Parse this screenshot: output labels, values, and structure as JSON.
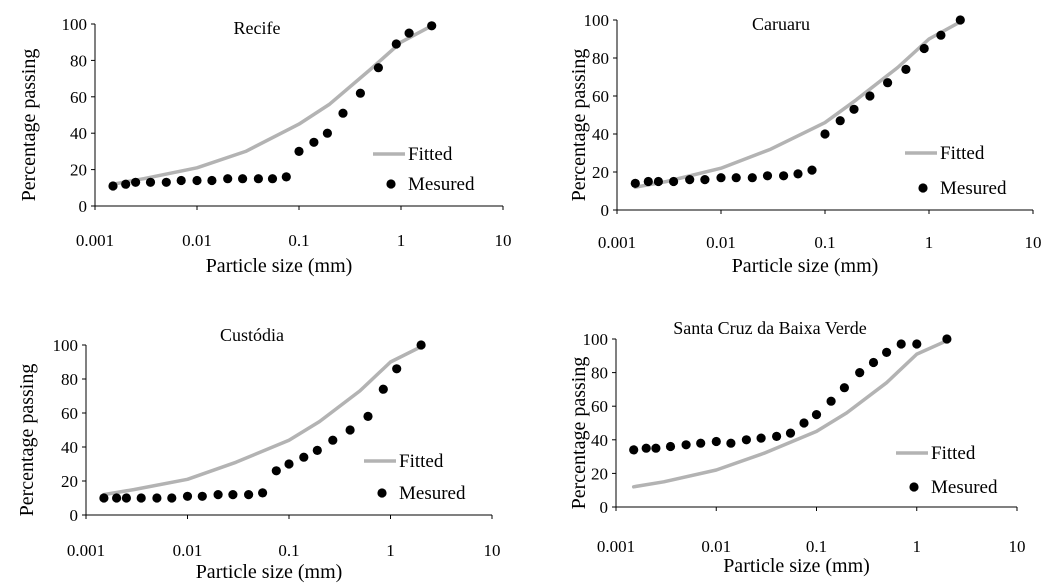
{
  "colors": {
    "fitted": "#b3b3b3",
    "measured": "#000000",
    "axis": "#000000"
  },
  "chart_data": [
    {
      "type": "scatter",
      "title": "Recife",
      "xlabel": "Particle size (mm)",
      "ylabel": "Percentage passing",
      "x_scale": "log",
      "xlim": [
        0.001,
        10
      ],
      "ylim": [
        0,
        100
      ],
      "x_ticks": [
        "0.001",
        "0.01",
        "0.1",
        "1",
        "10"
      ],
      "y_ticks": [
        "0",
        "20",
        "40",
        "60",
        "80",
        "100"
      ],
      "legend": {
        "position": "right",
        "entries": [
          "Fitted",
          "Mesured"
        ]
      },
      "series": [
        {
          "name": "Fitted",
          "style": "line",
          "x": [
            0.0015,
            0.003,
            0.01,
            0.03,
            0.1,
            0.2,
            0.5,
            1,
            2
          ],
          "y": [
            12,
            15,
            21,
            30,
            45,
            56,
            75,
            90,
            99
          ]
        },
        {
          "name": "Mesured",
          "style": "points",
          "x": [
            0.0015,
            0.002,
            0.0025,
            0.0035,
            0.005,
            0.007,
            0.01,
            0.014,
            0.02,
            0.028,
            0.04,
            0.055,
            0.075,
            0.1,
            0.14,
            0.19,
            0.27,
            0.4,
            0.6,
            0.9,
            1.2,
            2.0
          ],
          "y": [
            11,
            12,
            13,
            13,
            13,
            14,
            14,
            14,
            15,
            15,
            15,
            15,
            16,
            30,
            35,
            40,
            51,
            62,
            76,
            89,
            95,
            99
          ]
        }
      ]
    },
    {
      "type": "scatter",
      "title": "Caruaru",
      "xlabel": "Particle size (mm)",
      "ylabel": "Percentage passing",
      "x_scale": "log",
      "xlim": [
        0.001,
        10
      ],
      "ylim": [
        0,
        100
      ],
      "x_ticks": [
        "0.001",
        "0.01",
        "0.1",
        "1",
        "10"
      ],
      "y_ticks": [
        "0",
        "20",
        "40",
        "60",
        "80",
        "100"
      ],
      "legend": {
        "position": "right",
        "entries": [
          "Fitted",
          "Mesured"
        ]
      },
      "series": [
        {
          "name": "Fitted",
          "style": "line",
          "x": [
            0.0015,
            0.003,
            0.01,
            0.03,
            0.1,
            0.2,
            0.5,
            1,
            2
          ],
          "y": [
            12,
            15,
            22,
            32,
            46,
            58,
            75,
            90,
            99
          ]
        },
        {
          "name": "Mesured",
          "style": "points",
          "x": [
            0.0015,
            0.002,
            0.0025,
            0.0035,
            0.005,
            0.007,
            0.01,
            0.014,
            0.02,
            0.028,
            0.04,
            0.055,
            0.075,
            0.1,
            0.14,
            0.19,
            0.27,
            0.4,
            0.6,
            0.9,
            1.3,
            2.0
          ],
          "y": [
            14,
            15,
            15,
            15,
            16,
            16,
            17,
            17,
            17,
            18,
            18,
            19,
            21,
            40,
            47,
            53,
            60,
            67,
            74,
            85,
            92,
            100
          ]
        }
      ]
    },
    {
      "type": "scatter",
      "title": "Custódia",
      "xlabel": "Particle size (mm)",
      "ylabel": "Percentage passing",
      "x_scale": "log",
      "xlim": [
        0.001,
        10
      ],
      "ylim": [
        0,
        100
      ],
      "x_ticks": [
        "0.001",
        "0.01",
        "0.1",
        "1",
        "10"
      ],
      "y_ticks": [
        "0",
        "20",
        "40",
        "60",
        "80",
        "100"
      ],
      "legend": {
        "position": "right",
        "entries": [
          "Fitted",
          "Mesured"
        ]
      },
      "series": [
        {
          "name": "Fitted",
          "style": "line",
          "x": [
            0.0015,
            0.003,
            0.01,
            0.03,
            0.1,
            0.2,
            0.5,
            1,
            2
          ],
          "y": [
            12,
            15,
            21,
            31,
            44,
            55,
            73,
            90,
            99
          ]
        },
        {
          "name": "Mesured",
          "style": "points",
          "x": [
            0.0015,
            0.002,
            0.0025,
            0.0035,
            0.005,
            0.007,
            0.01,
            0.014,
            0.02,
            0.028,
            0.04,
            0.055,
            0.075,
            0.1,
            0.14,
            0.19,
            0.27,
            0.4,
            0.6,
            0.85,
            1.15,
            2.0
          ],
          "y": [
            10,
            10,
            10,
            10,
            10,
            10,
            11,
            11,
            12,
            12,
            12,
            13,
            26,
            30,
            34,
            38,
            44,
            50,
            58,
            74,
            86,
            100
          ]
        }
      ]
    },
    {
      "type": "scatter",
      "title": "Santa Cruz da Baixa Verde",
      "xlabel": "Particle size (mm)",
      "ylabel": "Percentage passing",
      "x_scale": "log",
      "xlim": [
        0.001,
        10
      ],
      "ylim": [
        0,
        100
      ],
      "x_ticks": [
        "0.001",
        "0.01",
        "0.1",
        "1",
        "10"
      ],
      "y_ticks": [
        "0",
        "20",
        "40",
        "60",
        "80",
        "100"
      ],
      "legend": {
        "position": "right",
        "entries": [
          "Fitted",
          "Mesured"
        ]
      },
      "series": [
        {
          "name": "Fitted",
          "style": "line",
          "x": [
            0.0015,
            0.003,
            0.01,
            0.03,
            0.1,
            0.2,
            0.5,
            1,
            2
          ],
          "y": [
            12,
            15,
            22,
            32,
            45,
            56,
            74,
            91,
            99
          ]
        },
        {
          "name": "Mesured",
          "style": "points",
          "x": [
            0.0015,
            0.002,
            0.0025,
            0.0035,
            0.005,
            0.007,
            0.01,
            0.014,
            0.02,
            0.028,
            0.04,
            0.055,
            0.075,
            0.1,
            0.14,
            0.19,
            0.27,
            0.37,
            0.5,
            0.7,
            1.0,
            2.0
          ],
          "y": [
            34,
            35,
            35,
            36,
            37,
            38,
            39,
            38,
            40,
            41,
            42,
            44,
            50,
            55,
            63,
            71,
            80,
            86,
            92,
            97,
            97,
            100
          ]
        }
      ]
    }
  ]
}
